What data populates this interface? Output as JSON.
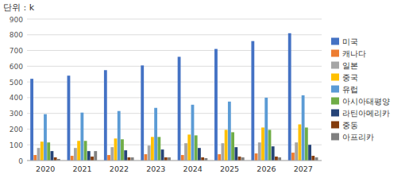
{
  "chart_data": {
    "type": "bar",
    "title": "단위 : k",
    "categories": [
      "2020",
      "2021",
      "2022",
      "2023",
      "2024",
      "2025",
      "2026",
      "2027"
    ],
    "series": [
      {
        "name": "미국",
        "color": "#4472C4",
        "values": [
          520,
          540,
          575,
          605,
          660,
          710,
          760,
          810
        ]
      },
      {
        "name": "캐나다",
        "color": "#ED7D31",
        "values": [
          35,
          30,
          35,
          40,
          35,
          40,
          45,
          50
        ]
      },
      {
        "name": "일본",
        "color": "#A5A5A5",
        "values": [
          80,
          80,
          85,
          95,
          110,
          110,
          115,
          115
        ]
      },
      {
        "name": "중국",
        "color": "#FFC000",
        "values": [
          120,
          125,
          140,
          150,
          165,
          195,
          210,
          230
        ]
      },
      {
        "name": "유럽",
        "color": "#5B9BD5",
        "values": [
          295,
          305,
          315,
          335,
          355,
          375,
          400,
          415
        ]
      },
      {
        "name": "아시아태평양",
        "color": "#70AD47",
        "values": [
          115,
          125,
          135,
          150,
          160,
          180,
          195,
          210
        ]
      },
      {
        "name": "라틴아메리카",
        "color": "#264478",
        "values": [
          60,
          60,
          65,
          70,
          80,
          85,
          90,
          100
        ]
      },
      {
        "name": "중동",
        "color": "#843C0C",
        "values": [
          20,
          25,
          20,
          20,
          20,
          25,
          25,
          30
        ]
      },
      {
        "name": "아프리카",
        "color": "#808080",
        "values": [
          10,
          60,
          20,
          20,
          15,
          20,
          20,
          20
        ]
      }
    ],
    "ylim": [
      0,
      900
    ],
    "yticks": [
      0,
      100,
      200,
      300,
      400,
      500,
      600,
      700,
      800,
      900
    ],
    "grid": true,
    "legend": "right"
  }
}
